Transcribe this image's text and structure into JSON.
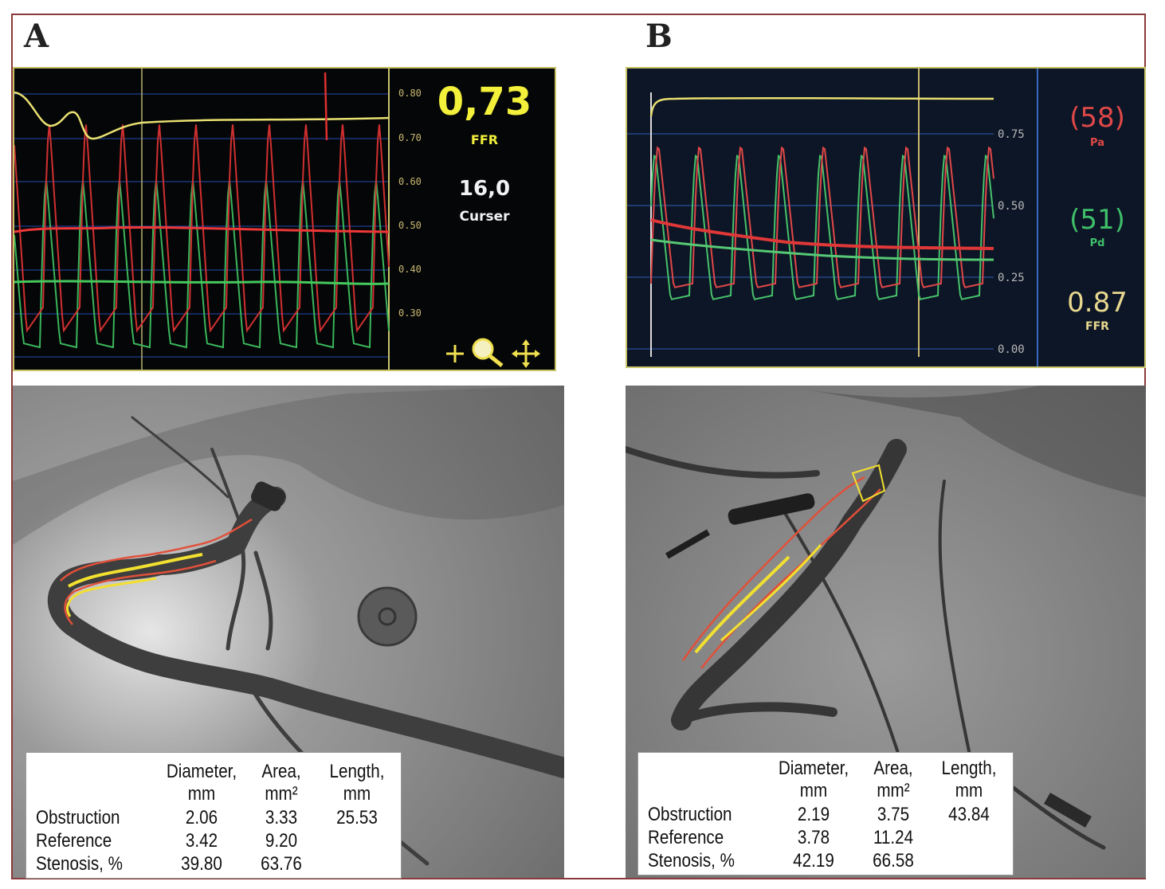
{
  "panel_a": {
    "label": "A",
    "ffr_value": "0,73",
    "ffr_label": "FFR",
    "cursor_value": "16,0",
    "cursor_label": "Curser",
    "tick_labels": [
      "0.80",
      "0.70",
      "0.60",
      "0.50",
      "0.40",
      "0.30"
    ],
    "tool_icons": [
      "plus-icon",
      "zoom-icon",
      "move-icon"
    ],
    "qca": {
      "headers": [
        {
          "line1": "Diameter,",
          "line2": "mm"
        },
        {
          "line1": "Area,",
          "line2": "mm²"
        },
        {
          "line1": "Length,",
          "line2": "mm"
        }
      ],
      "rows": [
        {
          "label": "Obstruction",
          "diameter": "2.06",
          "area": "3.33",
          "length": "25.53"
        },
        {
          "label": "Reference",
          "diameter": "3.42",
          "area": "9.20",
          "length": ""
        },
        {
          "label": "Stenosis, %",
          "diameter": "39.80",
          "area": "63.76",
          "length": ""
        }
      ]
    }
  },
  "panel_b": {
    "label": "B",
    "pa_value": "(58)",
    "pa_label": "Pa",
    "pd_value": "(51)",
    "pd_label": "Pd",
    "ffr_value": "0.87",
    "ffr_label": "FFR",
    "tick_labels": [
      "0.75",
      "0.50",
      "0.25",
      "0.00"
    ],
    "qca": {
      "headers": [
        {
          "line1": "Diameter,",
          "line2": "mm"
        },
        {
          "line1": "Area,",
          "line2": "mm²"
        },
        {
          "line1": "Length,",
          "line2": "mm"
        }
      ],
      "rows": [
        {
          "label": "Obstruction",
          "diameter": "2.19",
          "area": "3.75",
          "length": "43.84"
        },
        {
          "label": "Reference",
          "diameter": "3.78",
          "area": "11.24",
          "length": ""
        },
        {
          "label": "Stenosis, %",
          "diameter": "42.19",
          "area": "66.58",
          "length": ""
        }
      ]
    }
  },
  "colors": {
    "aortic_trace": "#e03030",
    "distal_trace": "#3ab55a",
    "ffr_trace": "#e8e070",
    "ffr_text_a": "#f2f03a",
    "ffr_text_b": "#e8d890",
    "pa_text": "#e04848",
    "pd_text": "#3fbf6a",
    "contour_outer": "#e0503a",
    "contour_inner": "#f2e030"
  }
}
